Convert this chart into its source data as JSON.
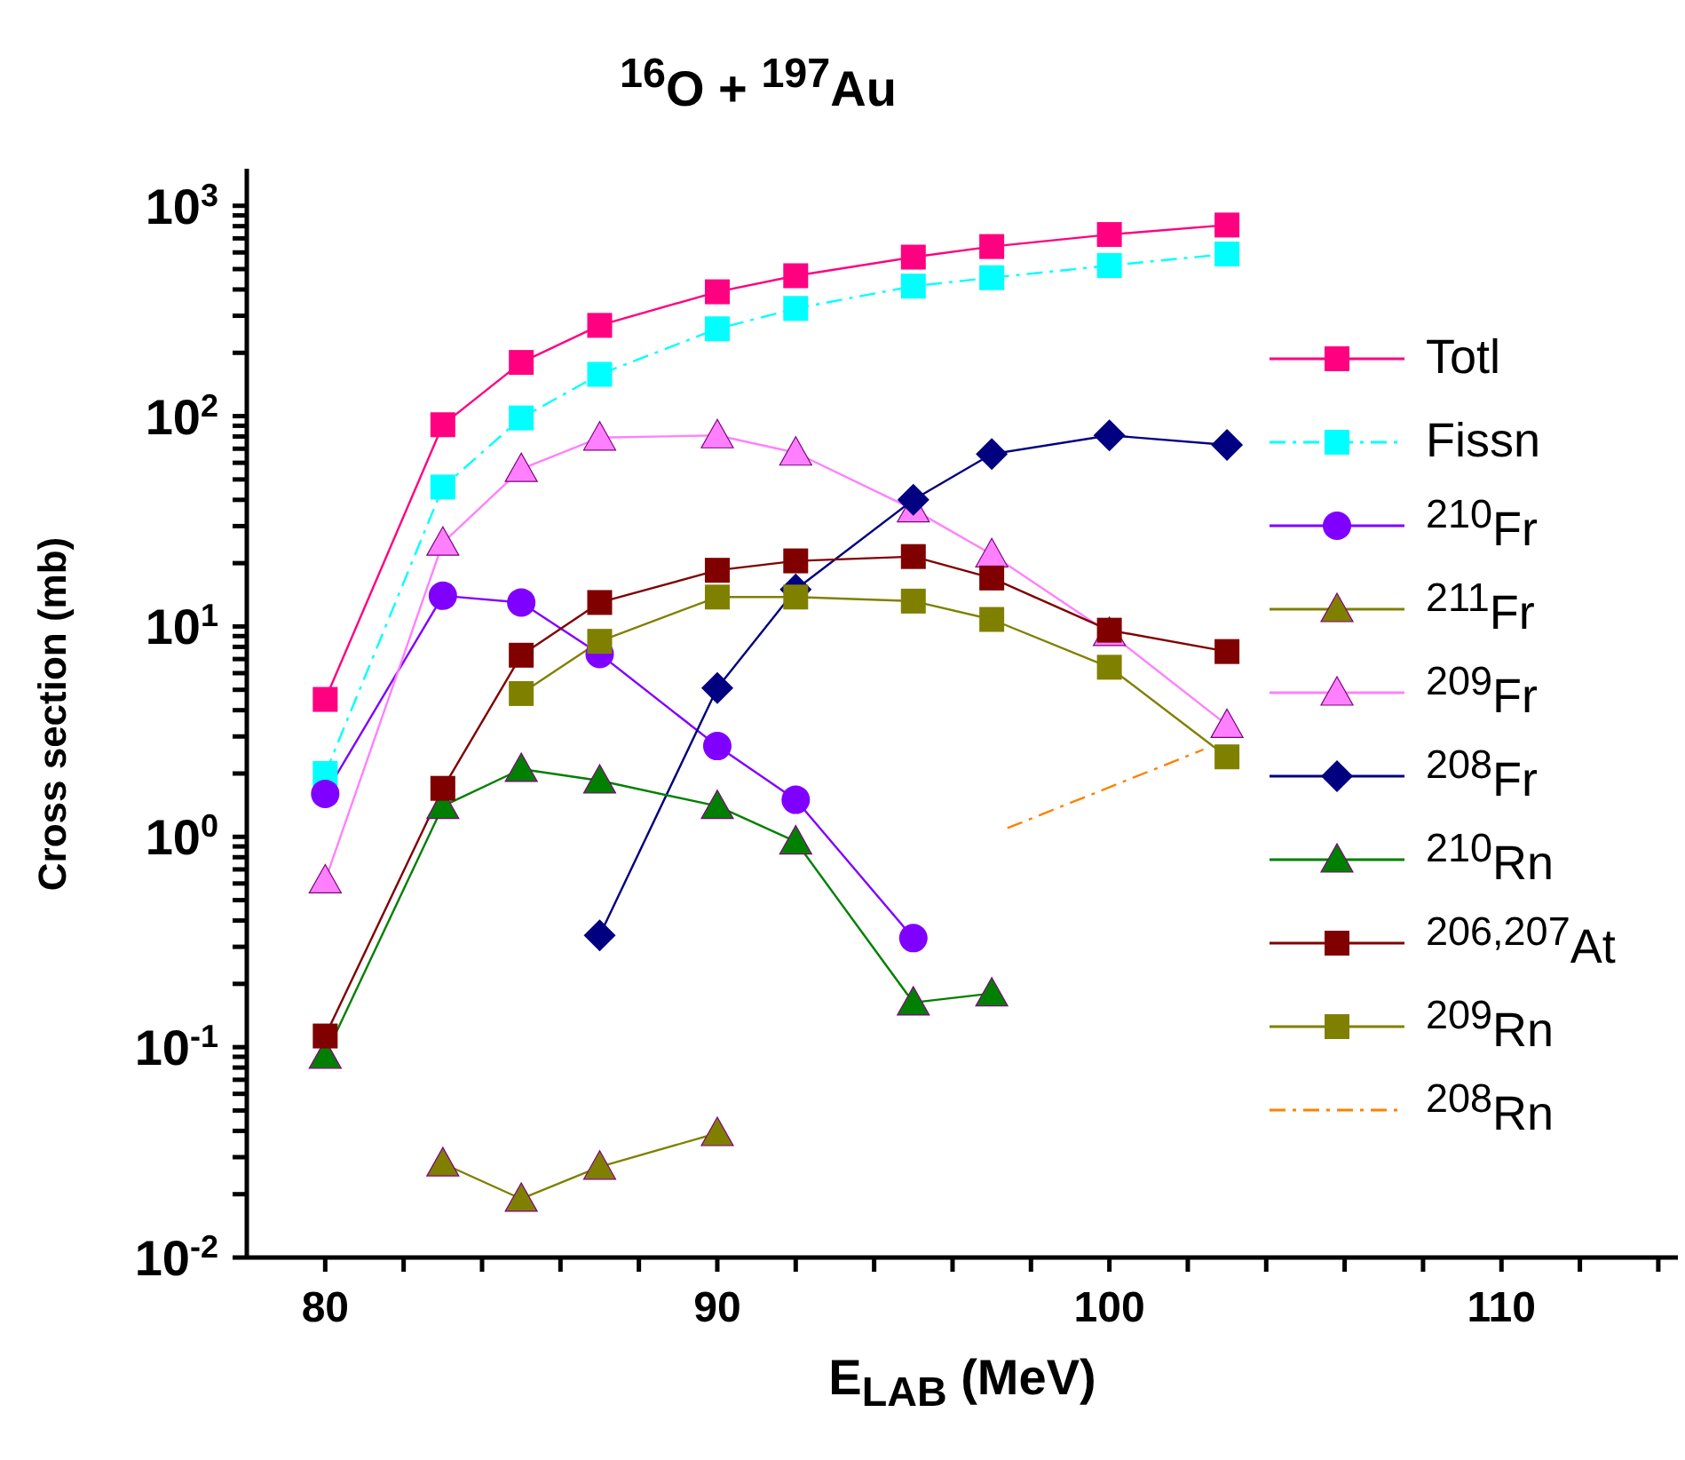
{
  "chart_data": {
    "type": "line",
    "title": "$^{16}$O + $^{197}$Au",
    "xlabel": "E$_{LAB}$ (MeV)",
    "ylabel": "Cross section (mb)",
    "log": "y",
    "legend": "right",
    "xlim": [
      78,
      114.5
    ],
    "ylim": [
      0.01,
      1500
    ],
    "xticks": [
      80,
      {
        "value": 82,
        "label": null
      },
      {
        "value": 84,
        "label": null
      },
      {
        "value": 86,
        "label": null
      },
      {
        "value": 88,
        "label": null
      },
      90,
      {
        "value": 92,
        "label": null
      },
      {
        "value": 94,
        "label": null
      },
      {
        "value": 96,
        "label": null
      },
      {
        "value": 98,
        "label": null
      },
      100,
      {
        "value": 102,
        "label": null
      },
      {
        "value": 104,
        "label": null
      },
      {
        "value": 106,
        "label": null
      },
      {
        "value": 108,
        "label": null
      },
      110,
      {
        "value": 112,
        "label": null
      },
      {
        "value": 114,
        "label": null
      }
    ],
    "yticks": [
      {
        "value": 0.01,
        "label": "10$^{-2}$"
      },
      {
        "value": 0.02,
        "label": null
      },
      {
        "value": 0.03,
        "label": null
      },
      {
        "value": 0.04,
        "label": null
      },
      {
        "value": 0.05,
        "label": null
      },
      {
        "value": 0.06,
        "label": null
      },
      {
        "value": 0.07,
        "label": null
      },
      {
        "value": 0.08,
        "label": null
      },
      {
        "value": 0.09,
        "label": null
      },
      {
        "value": 0.1,
        "label": "10$^{-1}$"
      },
      {
        "value": 0.2,
        "label": null
      },
      {
        "value": 0.3,
        "label": null
      },
      {
        "value": 0.4,
        "label": null
      },
      {
        "value": 0.5,
        "label": null
      },
      {
        "value": 0.6,
        "label": null
      },
      {
        "value": 0.7,
        "label": null
      },
      {
        "value": 0.8,
        "label": null
      },
      {
        "value": 0.9,
        "label": null
      },
      {
        "value": 1,
        "label": "10$^{0}$"
      },
      {
        "value": 2,
        "label": null
      },
      {
        "value": 3,
        "label": null
      },
      {
        "value": 4,
        "label": null
      },
      {
        "value": 5,
        "label": null
      },
      {
        "value": 6,
        "label": null
      },
      {
        "value": 7,
        "label": null
      },
      {
        "value": 8,
        "label": null
      },
      {
        "value": 9,
        "label": null
      },
      {
        "value": 10,
        "label": "10$^{1}$"
      },
      {
        "value": 20,
        "label": null
      },
      {
        "value": 30,
        "label": null
      },
      {
        "value": 40,
        "label": null
      },
      {
        "value": 50,
        "label": null
      },
      {
        "value": 60,
        "label": null
      },
      {
        "value": 70,
        "label": null
      },
      {
        "value": 80,
        "label": null
      },
      {
        "value": 90,
        "label": null
      },
      {
        "value": 100,
        "label": "10$^{2}$"
      },
      {
        "value": 200,
        "label": null
      },
      {
        "value": 300,
        "label": null
      },
      {
        "value": 400,
        "label": null
      },
      {
        "value": 500,
        "label": null
      },
      {
        "value": 600,
        "label": null
      },
      {
        "value": 700,
        "label": null
      },
      {
        "value": 800,
        "label": null
      },
      {
        "value": 900,
        "label": null
      },
      {
        "value": 1000,
        "label": "10$^{3}$"
      }
    ],
    "x": [
      80,
      83,
      85,
      87,
      90,
      92,
      95,
      97,
      100,
      103
    ],
    "series": [
      {
        "name": "Totl",
        "color": "#ff0080",
        "marker": "square",
        "line_style": "solid",
        "values": [
          4.5,
          91,
          180,
          270,
          390,
          465,
          570,
          640,
          730,
          810
        ]
      },
      {
        "name": "Fissn",
        "color": "#00ffff",
        "marker": "square",
        "line_style": "dashed",
        "values": [
          2.0,
          46,
          98,
          158,
          260,
          325,
          415,
          455,
          520,
          590
        ]
      },
      {
        "name": "$^{210}$Fr",
        "color": "#8000ff",
        "marker": "circle",
        "line_style": "solid",
        "values": [
          1.6,
          14,
          13,
          7.4,
          2.7,
          1.5,
          0.33,
          null,
          null,
          null
        ]
      },
      {
        "name": "$^{211}$Fr",
        "color": "#808000",
        "marker": "triangle",
        "line_style": "solid",
        "values": [
          null,
          0.028,
          0.019,
          0.027,
          0.039,
          null,
          null,
          null,
          null,
          null
        ]
      },
      {
        "name": "$^{209}$Fr",
        "color": "#ff80ff",
        "marker": "triangle",
        "line_style": "solid",
        "values": [
          0.62,
          25,
          56,
          79,
          81,
          67,
          36,
          22,
          9.3,
          3.4
        ]
      },
      {
        "name": "$^{208}$Fr",
        "color": "#000080",
        "marker": "diamond",
        "line_style": "solid",
        "values": [
          null,
          null,
          null,
          0.34,
          5.1,
          15,
          40,
          66,
          81,
          73
        ]
      },
      {
        "name": "$^{210}$Rn",
        "color": "#008000",
        "marker": "triangle",
        "line_style": "solid",
        "values": [
          0.091,
          1.4,
          2.1,
          1.85,
          1.4,
          0.95,
          0.163,
          0.18,
          null,
          null
        ]
      },
      {
        "name": "$^{206,207}$At",
        "color": "#800000",
        "marker": "square",
        "line_style": "solid",
        "values": [
          0.113,
          1.7,
          7.3,
          13,
          18.5,
          20.5,
          21.5,
          17,
          9.6,
          7.6
        ]
      },
      {
        "name": "$^{209}$Rn",
        "color": "#808000",
        "marker": "square",
        "line_style": "solid",
        "values": [
          null,
          null,
          4.8,
          8.5,
          13.8,
          13.8,
          13.2,
          10.8,
          6.4,
          2.4
        ]
      },
      {
        "name": "$^{208}$Rn",
        "color": "#ff8000",
        "marker": "none",
        "line_style": "dashed",
        "x": [
          97.4,
          102.4
        ],
        "values": [
          1.1,
          2.6
        ]
      }
    ]
  }
}
